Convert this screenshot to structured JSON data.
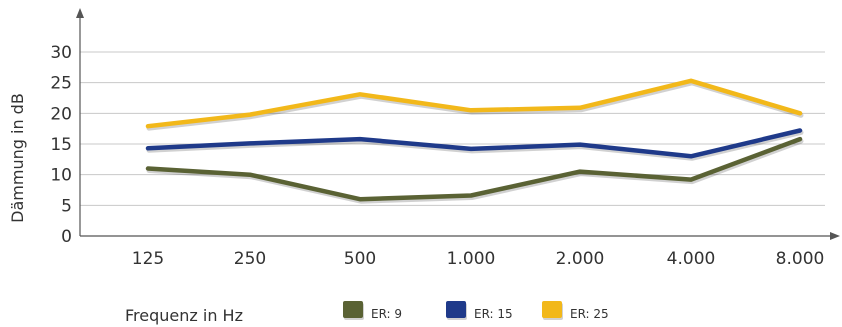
{
  "chart_data": {
    "type": "line",
    "title": "",
    "xlabel": "Frequenz in Hz",
    "ylabel": "Dämmung in dB",
    "categories": [
      "125",
      "250",
      "500",
      "1.000",
      "2.000",
      "4.000",
      "8.000"
    ],
    "yticks": [
      "0",
      "5",
      "10",
      "15",
      "20",
      "25",
      "30"
    ],
    "ylim": [
      0,
      30
    ],
    "grid": true,
    "legend_position": "bottom",
    "series": [
      {
        "name": "ER: 9",
        "color": "#5a6234",
        "values": [
          11,
          10,
          6,
          6.6,
          10.5,
          9.2,
          15.8
        ]
      },
      {
        "name": "ER: 15",
        "color": "#1f3a8a",
        "values": [
          14.3,
          15.1,
          15.8,
          14.2,
          14.9,
          13,
          17.2
        ]
      },
      {
        "name": "ER: 25",
        "color": "#f2b81a",
        "values": [
          17.9,
          19.8,
          23.1,
          20.5,
          20.9,
          25.3,
          20
        ]
      }
    ]
  }
}
